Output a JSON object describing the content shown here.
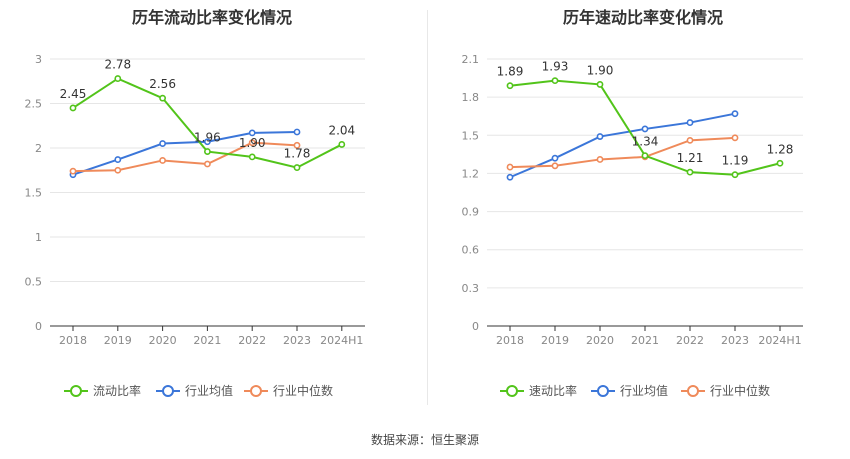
{
  "source_text": "数据来源：恒生聚源",
  "chart_data": [
    {
      "type": "line",
      "title": "历年流动比率变化情况",
      "categories": [
        "2018",
        "2019",
        "2020",
        "2021",
        "2022",
        "2023",
        "2024H1"
      ],
      "ylim": [
        0,
        3
      ],
      "yticks": [
        "0",
        "0.5",
        "1",
        "1.5",
        "2",
        "2.5",
        "3"
      ],
      "yticks_values": [
        0,
        0.5,
        1,
        1.5,
        2,
        2.5,
        3
      ],
      "grid": true,
      "legend_position": "bottom",
      "series": [
        {
          "name": "流动比率",
          "color": "#52c41a",
          "values": [
            2.45,
            2.78,
            2.56,
            1.96,
            1.9,
            1.78,
            2.04
          ],
          "labels": [
            "2.45",
            "2.78",
            "2.56",
            "1.96",
            "1.90",
            "1.78",
            "2.04"
          ]
        },
        {
          "name": "行业均值",
          "color": "#3b76d9",
          "values": [
            1.7,
            1.87,
            2.05,
            2.07,
            2.17,
            2.18,
            null
          ]
        },
        {
          "name": "行业中位数",
          "color": "#ef8a5a",
          "values": [
            1.74,
            1.75,
            1.86,
            1.82,
            2.06,
            2.03,
            null
          ]
        }
      ]
    },
    {
      "type": "line",
      "title": "历年速动比率变化情况",
      "categories": [
        "2018",
        "2019",
        "2020",
        "2021",
        "2022",
        "2023",
        "2024H1"
      ],
      "ylim": [
        0,
        2.1
      ],
      "yticks": [
        "0",
        "0.3",
        "0.6",
        "0.9",
        "1.2",
        "1.5",
        "1.8",
        "2.1"
      ],
      "yticks_values": [
        0,
        0.3,
        0.6,
        0.9,
        1.2,
        1.5,
        1.8,
        2.1
      ],
      "grid": true,
      "legend_position": "bottom",
      "series": [
        {
          "name": "速动比率",
          "color": "#52c41a",
          "values": [
            1.89,
            1.93,
            1.9,
            1.34,
            1.21,
            1.19,
            1.28
          ],
          "labels": [
            "1.89",
            "1.93",
            "1.90",
            "1.34",
            "1.21",
            "1.19",
            "1.28"
          ]
        },
        {
          "name": "行业均值",
          "color": "#3b76d9",
          "values": [
            1.17,
            1.32,
            1.49,
            1.55,
            1.6,
            1.67,
            null
          ]
        },
        {
          "name": "行业中位数",
          "color": "#ef8a5a",
          "values": [
            1.25,
            1.26,
            1.31,
            1.33,
            1.46,
            1.48,
            null
          ]
        }
      ]
    }
  ]
}
